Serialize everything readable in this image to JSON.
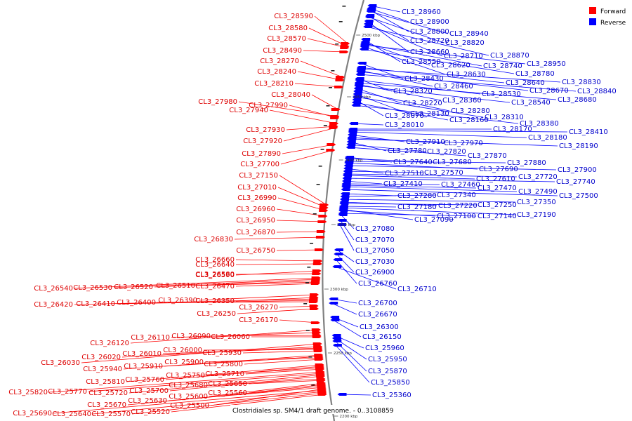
{
  "caption": "Clostridiales sp. SM4/1 draft genome. - 0..3108859",
  "colors": {
    "forward": "#ff0000",
    "reverse": "#0000ff",
    "backbone": "#808080"
  },
  "legend": [
    {
      "label": "Forward",
      "color": "#ff0000"
    },
    {
      "label": "Reverse",
      "color": "#0000ff"
    }
  ],
  "ticks": [
    "2500 kbp",
    "2450 kbp",
    "2400 kbp",
    "2350 kbp",
    "2300 kbp",
    "2250 kbp",
    "2200 kbp"
  ],
  "forward_labels": [
    "CL3_28590",
    "CL3_28580",
    "CL3_28570",
    "CL3_28490",
    "CL3_28270",
    "CL3_28240",
    "CL3_28210",
    "CL3_28040",
    "CL3_27980",
    "CL3_27990",
    "CL3_27940",
    "CL3_27930",
    "CL3_27920",
    "CL3_27890",
    "CL3_27700",
    "CL3_27150",
    "CL3_27010",
    "CL3_26990",
    "CL3_26960",
    "CL3_26950",
    "CL3_26870",
    "CL3_26830",
    "CL3_26750",
    "CL3_26660",
    "CL3_26640",
    "CL3_26590",
    "CL3_26580",
    "CL3_26540",
    "CL3_26530",
    "CL3_26520",
    "CL3_26510",
    "CL3_26470",
    "CL3_26390",
    "CL3_26350",
    "CL3_26420",
    "CL3_26410",
    "CL3_26400",
    "CL3_26250",
    "CL3_26270",
    "CL3_26170",
    "CL3_26120",
    "CL3_26110",
    "CL3_26090",
    "CL3_26060",
    "CL3_26030",
    "CL3_26020",
    "CL3_26010",
    "CL3_26000",
    "CL3_25930",
    "CL3_25940",
    "CL3_25910",
    "CL3_25900",
    "CL3_25800",
    "CL3_25810",
    "CL3_25760",
    "CL3_25750",
    "CL3_25710",
    "CL3_25820",
    "CL3_25770",
    "CL3_25720",
    "CL3_25700",
    "CL3_25680",
    "CL3_25650",
    "CL3_25600",
    "CL3_25560",
    "CL3_25670",
    "CL3_25630",
    "CL3_25500",
    "CL3_25690",
    "CL3_25640",
    "CL3_25570",
    "CL3_25520"
  ],
  "reverse_labels": [
    "CL3_28960",
    "CL3_28900",
    "CL3_28800",
    "CL3_28940",
    "CL3_28720",
    "CL3_28820",
    "CL3_28660",
    "CL3_28710",
    "CL3_28870",
    "CL3_28550",
    "CL3_28620",
    "CL3_28740",
    "CL3_28950",
    "CL3_28630",
    "CL3_28780",
    "CL3_28430",
    "CL3_28640",
    "CL3_28830",
    "CL3_28460",
    "CL3_28670",
    "CL3_28840",
    "CL3_28320",
    "CL3_28530",
    "CL3_28680",
    "CL3_28360",
    "CL3_28540",
    "CL3_28220",
    "CL3_28280",
    "CL3_28130",
    "CL3_28310",
    "CL3_28070",
    "CL3_28160",
    "CL3_28380",
    "CL3_28010",
    "CL3_28170",
    "CL3_28410",
    "CL3_28180",
    "CL3_27910",
    "CL3_27970",
    "CL3_28190",
    "CL3_27780",
    "CL3_27820",
    "CL3_27870",
    "CL3_27640",
    "CL3_27680",
    "CL3_27880",
    "CL3_27690",
    "CL3_27900",
    "CL3_27510",
    "CL3_27570",
    "CL3_27720",
    "CL3_27610",
    "CL3_27740",
    "CL3_27410",
    "CL3_27460",
    "CL3_27470",
    "CL3_27490",
    "CL3_27500",
    "CL3_27280",
    "CL3_27340",
    "CL3_27350",
    "CL3_27220",
    "CL3_27250",
    "CL3_27180",
    "CL3_27190",
    "CL3_27090",
    "CL3_27100",
    "CL3_27140",
    "CL3_27080",
    "CL3_27070",
    "CL3_27050",
    "CL3_27030",
    "CL3_26900",
    "CL3_26760",
    "CL3_26710",
    "CL3_26700",
    "CL3_26670",
    "CL3_26300",
    "CL3_26150",
    "CL3_25960",
    "CL3_25950",
    "CL3_25870",
    "CL3_25850",
    "CL3_25360"
  ]
}
